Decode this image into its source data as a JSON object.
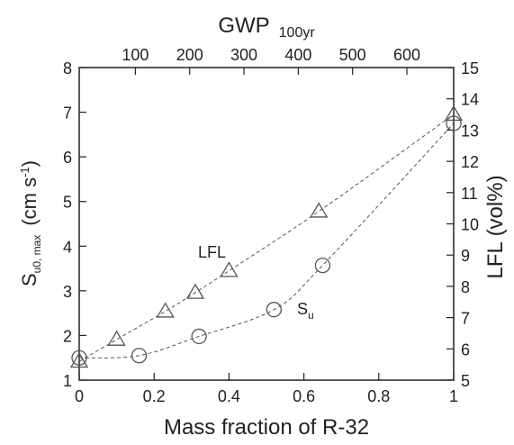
{
  "chart_data": {
    "type": "scatter",
    "xlabel": "Mass fraction of R-32",
    "top_axis": {
      "title": "GWP",
      "title_subscript": "100yr",
      "ticks": [
        {
          "label": "100",
          "at": 0.15
        },
        {
          "label": "200",
          "at": 0.295
        },
        {
          "label": "300",
          "at": 0.44
        },
        {
          "label": "400",
          "at": 0.585
        },
        {
          "label": "500",
          "at": 0.73
        },
        {
          "label": "600",
          "at": 0.875
        }
      ]
    },
    "xlim": [
      0,
      1
    ],
    "xticks": [
      {
        "value": 0,
        "label": "0"
      },
      {
        "value": 0.2,
        "label": "0.2"
      },
      {
        "value": 0.4,
        "label": "0.4"
      },
      {
        "value": 0.6,
        "label": "0.6"
      },
      {
        "value": 0.8,
        "label": "0.8"
      },
      {
        "value": 1,
        "label": "1"
      }
    ],
    "left_axis": {
      "title_main": "S",
      "title_subscript": "u0, max",
      "title_unit": "(cm s",
      "title_sup": "-1",
      "title_close": ")",
      "ylim": [
        1,
        8
      ],
      "ticks": [
        "1",
        "2",
        "3",
        "4",
        "5",
        "6",
        "7",
        "8"
      ]
    },
    "right_axis": {
      "title": "LFL  (vol%)",
      "ylim": [
        5,
        15
      ],
      "ticks": [
        "5",
        "6",
        "7",
        "8",
        "9",
        "10",
        "11",
        "12",
        "13",
        "14",
        "15"
      ]
    },
    "series": [
      {
        "name": "LFL",
        "marker": "triangle",
        "axis": "right",
        "x": [
          0,
          0.1,
          0.23,
          0.31,
          0.4,
          0.64,
          1.0
        ],
        "y": [
          5.6,
          6.3,
          7.2,
          7.8,
          8.5,
          10.4,
          13.5
        ]
      },
      {
        "name": "S",
        "name_subscript": "u",
        "marker": "circle",
        "axis": "left",
        "x": [
          0,
          0.16,
          0.32,
          0.52,
          0.65,
          1.0
        ],
        "y": [
          1.5,
          1.55,
          1.98,
          2.58,
          3.57,
          6.75
        ]
      }
    ],
    "grid": false,
    "legend": "none",
    "colors": {
      "line": "#555555",
      "marker": "#555555",
      "axis": "#222222"
    }
  }
}
